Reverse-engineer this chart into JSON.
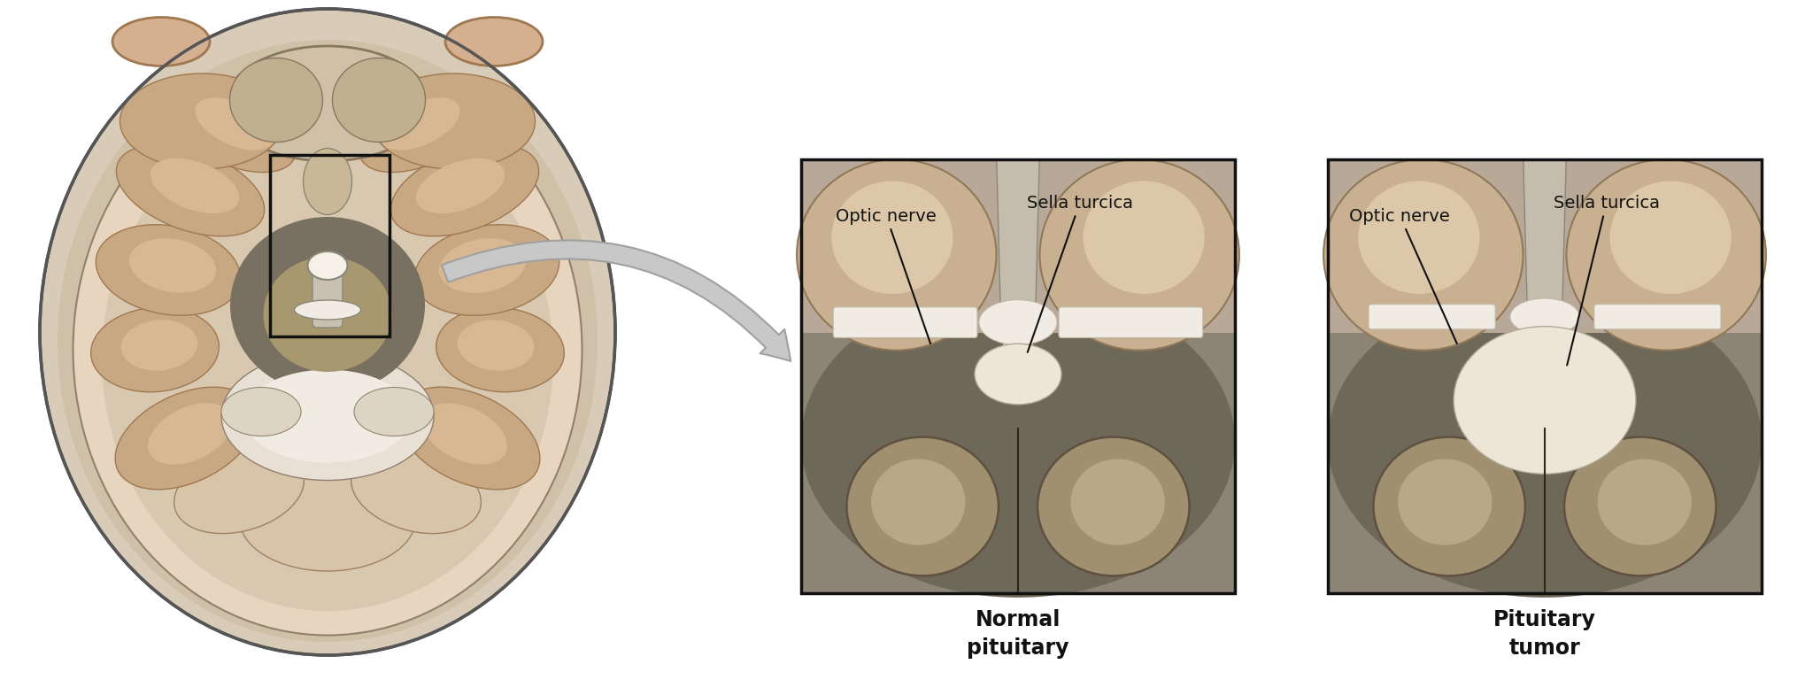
{
  "bg_color": "#ffffff",
  "skull_outer_color": "#d8cbb8",
  "skull_outline": "#555555",
  "brain_base_color": "#e8d5c0",
  "gyri_dark": "#c8a882",
  "gyri_medium": "#d4b898",
  "dark_center": "#7a7060",
  "lighter_center": "#b0a080",
  "white_matter": "#f0ece4",
  "cerebellum_color": "#c8b89a",
  "pituitary_color": "#f0ece4",
  "panel_bg_outer": "#8a8070",
  "panel_tissue_top": "#c8b898",
  "panel_bone_color": "#bab0a0",
  "panel_gray_bg": "#888070",
  "chiasm_color": "#f0ece4",
  "tumor_color": "#e8ddc8",
  "peduncle_color": "#a89878",
  "peduncle_inner": "#bba888",
  "arrow_fill": "#c0c0c0",
  "arrow_stroke": "#999999",
  "label_color": "#111111",
  "annotation_color": "#111111",
  "box_color": "#111111",
  "font_size_annotation": 14,
  "font_size_panel_label": 17,
  "optic_nerve_label": "Optic nerve",
  "sella_turcica_label": "Sella turcica",
  "normal_label": "Normal\npituitary",
  "tumor_label": "Pituitary\ntumor"
}
